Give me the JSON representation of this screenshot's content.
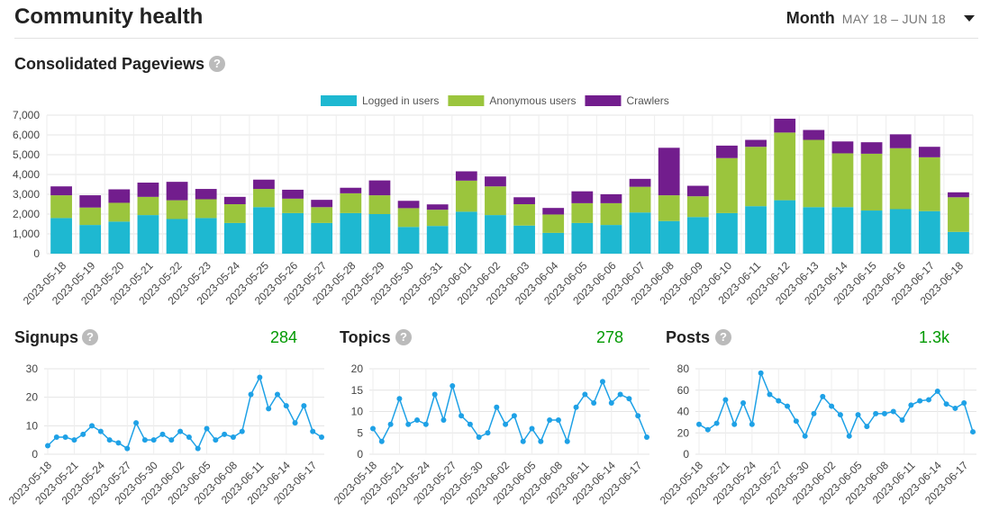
{
  "header": {
    "title": "Community health",
    "period_label": "Month",
    "period_range": "MAY 18 – JUN 18"
  },
  "icons": {
    "help": "question-circle-icon",
    "dropdown": "caret-down-icon",
    "trend": "chevron-up-icon"
  },
  "colors": {
    "logged_in": "#1eb8d1",
    "anonymous": "#9bc53d",
    "crawlers": "#721d8d",
    "line": "#1ea1e6",
    "positive": "#009900"
  },
  "pageviews": {
    "title": "Consolidated Pageviews",
    "chart_data": {
      "type": "bar",
      "stacked": true,
      "legend_position": "top",
      "grid": true,
      "ylim": [
        0,
        7000
      ],
      "yticks": [
        "0",
        "1,000",
        "2,000",
        "3,000",
        "4,000",
        "5,000",
        "6,000",
        "7,000"
      ],
      "categories": [
        "2023-05-18",
        "2023-05-19",
        "2023-05-20",
        "2023-05-21",
        "2023-05-22",
        "2023-05-23",
        "2023-05-24",
        "2023-05-25",
        "2023-05-26",
        "2023-05-27",
        "2023-05-28",
        "2023-05-29",
        "2023-05-30",
        "2023-05-31",
        "2023-06-01",
        "2023-06-02",
        "2023-06-03",
        "2023-06-04",
        "2023-06-05",
        "2023-06-06",
        "2023-06-07",
        "2023-06-08",
        "2023-06-09",
        "2023-06-10",
        "2023-06-11",
        "2023-06-12",
        "2023-06-13",
        "2023-06-14",
        "2023-06-15",
        "2023-06-16",
        "2023-06-17",
        "2023-06-18"
      ],
      "series": [
        {
          "name": "Logged in users",
          "color": "#1eb8d1",
          "values": [
            1800,
            1450,
            1620,
            1950,
            1750,
            1800,
            1550,
            2350,
            2050,
            1550,
            2050,
            2000,
            1350,
            1400,
            2120,
            1950,
            1420,
            1050,
            1550,
            1450,
            2080,
            1650,
            1850,
            2050,
            2400,
            2700,
            2350,
            2350,
            2180,
            2250,
            2150,
            1100
          ]
        },
        {
          "name": "Anonymous users",
          "color": "#9bc53d",
          "values": [
            1150,
            880,
            950,
            920,
            950,
            950,
            950,
            920,
            730,
            800,
            1000,
            950,
            950,
            820,
            1570,
            1450,
            1080,
            930,
            1000,
            1100,
            1300,
            1300,
            1050,
            2780,
            3000,
            3420,
            3400,
            2720,
            2870,
            3080,
            2720,
            1750
          ]
        },
        {
          "name": "Crawlers",
          "color": "#721d8d",
          "values": [
            450,
            620,
            680,
            720,
            930,
            520,
            370,
            470,
            450,
            370,
            280,
            750,
            370,
            270,
            470,
            500,
            350,
            330,
            600,
            450,
            400,
            2400,
            530,
            630,
            350,
            700,
            500,
            600,
            580,
            700,
            530,
            250
          ]
        }
      ]
    }
  },
  "signups": {
    "title": "Signups",
    "total": "284",
    "chart_data": {
      "type": "line",
      "ylim": [
        0,
        30
      ],
      "yticks": [
        "0",
        "10",
        "20",
        "30"
      ],
      "xticks": [
        "2023-05-18",
        "2023-05-21",
        "2023-05-24",
        "2023-05-27",
        "2023-05-30",
        "2023-06-02",
        "2023-06-05",
        "2023-06-08",
        "2023-06-11",
        "2023-06-14",
        "2023-06-17"
      ],
      "values": [
        3,
        6,
        6,
        5,
        7,
        10,
        8,
        5,
        4,
        2,
        11,
        5,
        5,
        7,
        5,
        8,
        6,
        2,
        9,
        5,
        7,
        6,
        8,
        21,
        27,
        16,
        21,
        17,
        11,
        17,
        8,
        6
      ]
    }
  },
  "topics": {
    "title": "Topics",
    "total": "278",
    "chart_data": {
      "type": "line",
      "ylim": [
        0,
        20
      ],
      "yticks": [
        "0",
        "5",
        "10",
        "15",
        "20"
      ],
      "xticks": [
        "2023-05-18",
        "2023-05-21",
        "2023-05-24",
        "2023-05-27",
        "2023-05-30",
        "2023-06-02",
        "2023-06-05",
        "2023-06-08",
        "2023-06-11",
        "2023-06-14",
        "2023-06-17"
      ],
      "values": [
        6,
        3,
        7,
        13,
        7,
        8,
        7,
        14,
        8,
        16,
        9,
        7,
        4,
        5,
        11,
        7,
        9,
        3,
        6,
        3,
        8,
        8,
        3,
        11,
        14,
        12,
        17,
        12,
        14,
        13,
        9,
        4
      ]
    }
  },
  "posts": {
    "title": "Posts",
    "total": "1.3k",
    "chart_data": {
      "type": "line",
      "ylim": [
        0,
        80
      ],
      "yticks": [
        "0",
        "20",
        "40",
        "60",
        "80"
      ],
      "xticks": [
        "2023-05-18",
        "2023-05-21",
        "2023-05-24",
        "2023-05-27",
        "2023-05-30",
        "2023-06-02",
        "2023-06-05",
        "2023-06-08",
        "2023-06-11",
        "2023-06-14",
        "2023-06-17"
      ],
      "values": [
        28,
        23,
        29,
        51,
        28,
        48,
        28,
        76,
        56,
        50,
        45,
        31,
        17,
        38,
        54,
        45,
        37,
        17,
        37,
        26,
        38,
        38,
        40,
        32,
        46,
        50,
        51,
        59,
        47,
        43,
        48,
        21
      ]
    }
  }
}
